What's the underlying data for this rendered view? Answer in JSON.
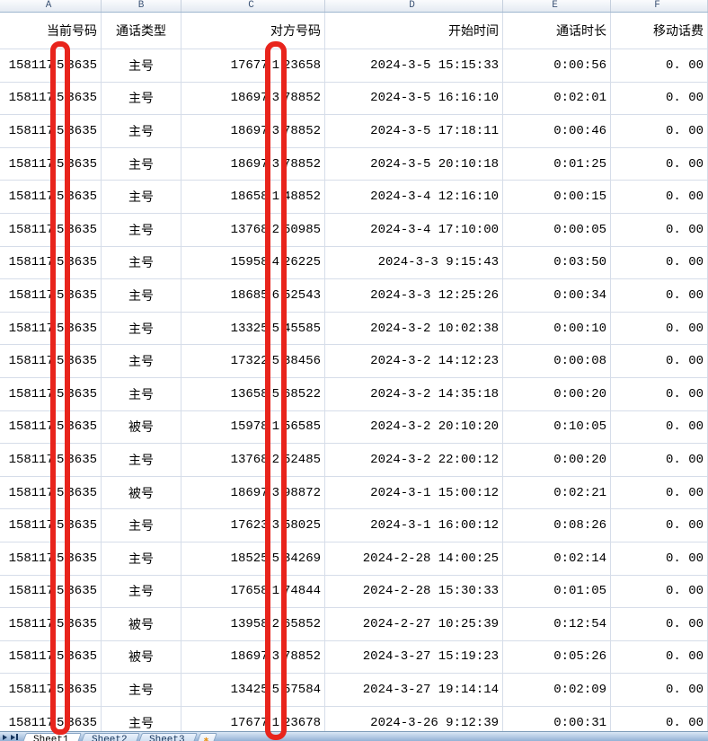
{
  "spreadsheet": {
    "column_letters": [
      "A",
      "B",
      "C",
      "D",
      "E",
      "F"
    ],
    "fields": [
      "当前号码",
      "通话类型",
      "对方号码",
      "开始时间",
      "通话时长",
      "移动话费"
    ],
    "rows": [
      [
        "15811753635",
        "主号",
        "17677123658",
        "2024-3-5 15:15:33",
        "0:00:56",
        "0. 00"
      ],
      [
        "15811753635",
        "主号",
        "18697378852",
        "2024-3-5 16:16:10",
        "0:02:01",
        "0. 00"
      ],
      [
        "15811753635",
        "主号",
        "18697378852",
        "2024-3-5 17:18:11",
        "0:00:46",
        "0. 00"
      ],
      [
        "15811753635",
        "主号",
        "18697378852",
        "2024-3-5 20:10:18",
        "0:01:25",
        "0. 00"
      ],
      [
        "15811753635",
        "主号",
        "18658148852",
        "2024-3-4 12:16:10",
        "0:00:15",
        "0. 00"
      ],
      [
        "15811753635",
        "主号",
        "13768250985",
        "2024-3-4 17:10:00",
        "0:00:05",
        "0. 00"
      ],
      [
        "15811753635",
        "主号",
        "15958426225",
        "2024-3-3 9:15:43",
        "0:03:50",
        "0. 00"
      ],
      [
        "15811753635",
        "主号",
        "18685652543",
        "2024-3-3 12:25:26",
        "0:00:34",
        "0. 00"
      ],
      [
        "15811753635",
        "主号",
        "13325545585",
        "2024-3-2 10:02:38",
        "0:00:10",
        "0. 00"
      ],
      [
        "15811753635",
        "主号",
        "17322538456",
        "2024-3-2 14:12:23",
        "0:00:08",
        "0. 00"
      ],
      [
        "15811753635",
        "主号",
        "13658568522",
        "2024-3-2 14:35:18",
        "0:00:20",
        "0. 00"
      ],
      [
        "15811753635",
        "被号",
        "15978156585",
        "2024-3-2 20:10:20",
        "0:10:05",
        "0. 00"
      ],
      [
        "15811753635",
        "主号",
        "13768252485",
        "2024-3-2 22:00:12",
        "0:00:20",
        "0. 00"
      ],
      [
        "15811753635",
        "被号",
        "18697398872",
        "2024-3-1 15:00:12",
        "0:02:21",
        "0. 00"
      ],
      [
        "15811753635",
        "主号",
        "17623358025",
        "2024-3-1 16:00:12",
        "0:08:26",
        "0. 00"
      ],
      [
        "15811753635",
        "主号",
        "18525534269",
        "2024-2-28 14:00:25",
        "0:02:14",
        "0. 00"
      ],
      [
        "15811753635",
        "主号",
        "17658174844",
        "2024-2-28 15:30:33",
        "0:01:05",
        "0. 00"
      ],
      [
        "15811753635",
        "被号",
        "13958265852",
        "2024-2-27 10:25:39",
        "0:12:54",
        "0. 00"
      ],
      [
        "15811753635",
        "被号",
        "18697378852",
        "2024-3-27 15:19:23",
        "0:05:26",
        "0. 00"
      ],
      [
        "15811753635",
        "主号",
        "13425557584",
        "2024-3-27 19:14:14",
        "0:02:09",
        "0. 00"
      ],
      [
        "15811753635",
        "主号",
        "17677123678",
        "2024-3-26 9:12:39",
        "0:00:31",
        "0. 00"
      ]
    ]
  },
  "annotations": {
    "redaction_color": "#e8241c",
    "bars": [
      {
        "column": "A",
        "covered_char_index": 6
      },
      {
        "column": "C",
        "covered_char_index": 5
      }
    ]
  },
  "tabbar": {
    "tabs": [
      {
        "label": "Sheet1",
        "active": true
      },
      {
        "label": "Sheet2",
        "active": false
      },
      {
        "label": "Sheet3",
        "active": false
      }
    ],
    "nav_icons": [
      "scroll-previous-icon",
      "scroll-last-icon"
    ],
    "insert_icon": "insert-worksheet-icon",
    "insert_glyph": "✱"
  },
  "colors": {
    "grid_line": "#d6dde9",
    "column_strip_text": "#3e5577",
    "tab_text": "#17365d"
  }
}
